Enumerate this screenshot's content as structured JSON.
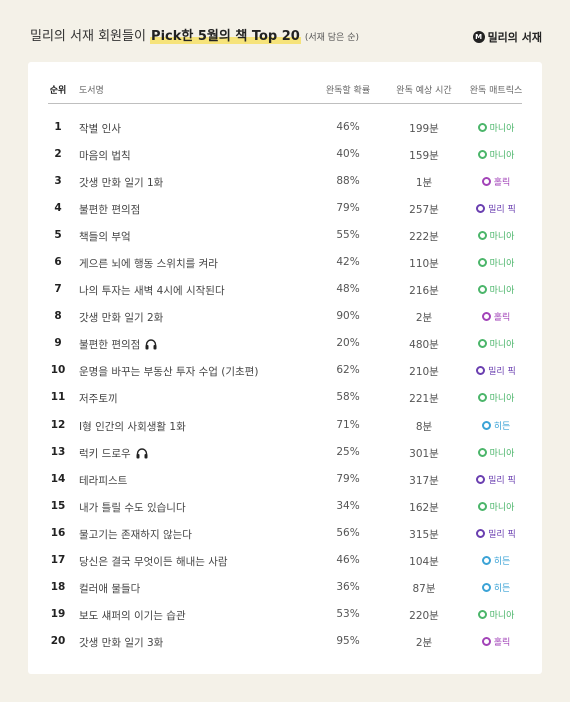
{
  "header": {
    "title_pre": "밀리의 서재 회원들이 ",
    "title_highlight": "Pick한 5월의 책 Top 20",
    "title_sub": "(서재 담은 순)",
    "brand_logo": "M",
    "brand_name": "밀리의 서재"
  },
  "table": {
    "columns": {
      "rank": "순위",
      "title": "도서명",
      "probability": "완독할 확률",
      "time": "완독 예상 시간",
      "matrix": "완독 매트릭스"
    },
    "rows": [
      {
        "rank": "1",
        "title": "작별 인사",
        "probability": "46%",
        "time": "199분",
        "matrix": "마니아",
        "matrix_color": "#4bb56a",
        "audio": false
      },
      {
        "rank": "2",
        "title": "마음의 법칙",
        "probability": "40%",
        "time": "159분",
        "matrix": "마니아",
        "matrix_color": "#4bb56a",
        "audio": false
      },
      {
        "rank": "3",
        "title": "갓생 만화 일기 1화",
        "probability": "88%",
        "time": "1분",
        "matrix": "홀릭",
        "matrix_color": "#a243b8",
        "audio": false
      },
      {
        "rank": "4",
        "title": "불편한 편의점",
        "probability": "79%",
        "time": "257분",
        "matrix": "밀리 픽",
        "matrix_color": "#6a3fb0",
        "audio": false
      },
      {
        "rank": "5",
        "title": "책들의 부엌",
        "probability": "55%",
        "time": "222분",
        "matrix": "마니아",
        "matrix_color": "#4bb56a",
        "audio": false
      },
      {
        "rank": "6",
        "title": "게으른 뇌에 행동 스위치를 켜라",
        "probability": "42%",
        "time": "110분",
        "matrix": "마니아",
        "matrix_color": "#4bb56a",
        "audio": false
      },
      {
        "rank": "7",
        "title": "나의 투자는 새벽 4시에 시작된다",
        "probability": "48%",
        "time": "216분",
        "matrix": "마니아",
        "matrix_color": "#4bb56a",
        "audio": false
      },
      {
        "rank": "8",
        "title": "갓생 만화 일기 2화",
        "probability": "90%",
        "time": "2분",
        "matrix": "홀릭",
        "matrix_color": "#a243b8",
        "audio": false
      },
      {
        "rank": "9",
        "title": "불편한 편의점",
        "probability": "20%",
        "time": "480분",
        "matrix": "마니아",
        "matrix_color": "#4bb56a",
        "audio": true
      },
      {
        "rank": "10",
        "title": "운명을 바꾸는 부동산 투자 수업 (기초편)",
        "probability": "62%",
        "time": "210분",
        "matrix": "밀리 픽",
        "matrix_color": "#6a3fb0",
        "audio": false
      },
      {
        "rank": "11",
        "title": "저주토끼",
        "probability": "58%",
        "time": "221분",
        "matrix": "마니아",
        "matrix_color": "#4bb56a",
        "audio": false
      },
      {
        "rank": "12",
        "title": "I형 인간의 사회생활 1화",
        "probability": "71%",
        "time": "8분",
        "matrix": "히든",
        "matrix_color": "#3ba3d6",
        "audio": false
      },
      {
        "rank": "13",
        "title": "럭키 드로우",
        "probability": "25%",
        "time": "301분",
        "matrix": "마니아",
        "matrix_color": "#4bb56a",
        "audio": true
      },
      {
        "rank": "14",
        "title": "테라피스트",
        "probability": "79%",
        "time": "317분",
        "matrix": "밀리 픽",
        "matrix_color": "#6a3fb0",
        "audio": false
      },
      {
        "rank": "15",
        "title": "내가 틀릴 수도 있습니다",
        "probability": "34%",
        "time": "162분",
        "matrix": "마니아",
        "matrix_color": "#4bb56a",
        "audio": false
      },
      {
        "rank": "16",
        "title": "물고기는 존재하지 않는다",
        "probability": "56%",
        "time": "315분",
        "matrix": "밀리 픽",
        "matrix_color": "#6a3fb0",
        "audio": false
      },
      {
        "rank": "17",
        "title": "당신은 결국 무엇이든 해내는 사람",
        "probability": "46%",
        "time": "104분",
        "matrix": "히든",
        "matrix_color": "#3ba3d6",
        "audio": false
      },
      {
        "rank": "18",
        "title": "컬러애 물들다",
        "probability": "36%",
        "time": "87분",
        "matrix": "히든",
        "matrix_color": "#3ba3d6",
        "audio": false
      },
      {
        "rank": "19",
        "title": "보도 섀퍼의 이기는 습관",
        "probability": "53%",
        "time": "220분",
        "matrix": "마니아",
        "matrix_color": "#4bb56a",
        "audio": false
      },
      {
        "rank": "20",
        "title": "갓생 만화 일기 3화",
        "probability": "95%",
        "time": "2분",
        "matrix": "홀릭",
        "matrix_color": "#a243b8",
        "audio": false
      }
    ]
  }
}
